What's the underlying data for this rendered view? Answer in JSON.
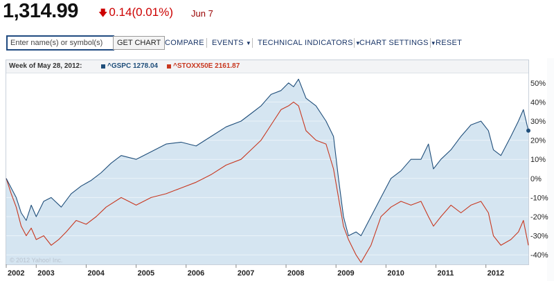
{
  "quote": {
    "price": "1,314.99",
    "change": "0.14",
    "change_pct": "(0.01%)",
    "change_direction": "down",
    "date": "Jun 7",
    "down_color": "#cc0000"
  },
  "toolbar": {
    "search_placeholder": "Enter name(s) or symbol(s)",
    "get_chart_label": "GET CHART",
    "compare_label": "COMPARE",
    "events_label": "EVENTS",
    "technical_indicators_label": "TECHNICAL INDICATORS",
    "chart_settings_label": "CHART SETTINGS",
    "reset_label": "RESET",
    "menu_icon": "caret-down-icon"
  },
  "legend": {
    "week_label": "Week of May 28, 2012:",
    "series": [
      {
        "symbol": "^GSPC",
        "value": "1278.04",
        "color": "#1f4e7a"
      },
      {
        "symbol": "^STOXX50E",
        "value": "2161.87",
        "color": "#c8371f"
      }
    ]
  },
  "copyright": "© 2012 Yahoo! Inc.",
  "chart_data": {
    "type": "line",
    "title": "",
    "xlabel": "",
    "ylabel": "",
    "ylim": [
      -45,
      55
    ],
    "y_ticks": [
      "50%",
      "40%",
      "30%",
      "20%",
      "10%",
      "0%",
      "-10%",
      "-20%",
      "-30%",
      "-40%"
    ],
    "y_tick_values": [
      50,
      40,
      30,
      20,
      10,
      0,
      -10,
      -20,
      -30,
      -40
    ],
    "x_ticks": [
      "2002",
      "2003",
      "2004",
      "2005",
      "2006",
      "2007",
      "2008",
      "2009",
      "2010",
      "2011",
      "2012"
    ],
    "x_tick_values": [
      2002.0,
      2002.6,
      2003.6,
      2004.6,
      2005.6,
      2006.6,
      2007.6,
      2008.6,
      2009.6,
      2010.6,
      2011.6
    ],
    "xlim": [
      2002.0,
      2012.45
    ],
    "grid": true,
    "area_fill_color": "#d5e5f1",
    "series": [
      {
        "name": "^GSPC",
        "color": "#1f4e7a",
        "x": [
          2002.0,
          2002.1,
          2002.2,
          2002.3,
          2002.4,
          2002.5,
          2002.6,
          2002.75,
          2002.9,
          2003.1,
          2003.3,
          2003.5,
          2003.7,
          2003.9,
          2004.1,
          2004.3,
          2004.6,
          2004.9,
          2005.2,
          2005.5,
          2005.8,
          2006.1,
          2006.4,
          2006.7,
          2006.9,
          2007.1,
          2007.3,
          2007.5,
          2007.65,
          2007.75,
          2007.85,
          2008.0,
          2008.2,
          2008.4,
          2008.55,
          2008.65,
          2008.75,
          2008.85,
          2009.0,
          2009.1,
          2009.3,
          2009.5,
          2009.7,
          2009.9,
          2010.1,
          2010.3,
          2010.45,
          2010.55,
          2010.7,
          2010.9,
          2011.1,
          2011.3,
          2011.5,
          2011.65,
          2011.75,
          2011.9,
          2012.1,
          2012.25,
          2012.35,
          2012.45
        ],
        "y": [
          0,
          -5,
          -10,
          -18,
          -22,
          -14,
          -20,
          -12,
          -10,
          -15,
          -8,
          -4,
          -1,
          3,
          8,
          12,
          10,
          14,
          18,
          19,
          17,
          22,
          27,
          30,
          34,
          38,
          44,
          46,
          50,
          48,
          52,
          42,
          38,
          30,
          22,
          0,
          -20,
          -30,
          -28,
          -30,
          -20,
          -10,
          0,
          4,
          10,
          10,
          18,
          5,
          10,
          15,
          22,
          28,
          30,
          25,
          15,
          12,
          22,
          30,
          36,
          25
        ]
      },
      {
        "name": "^STOXX50E",
        "color": "#c8371f",
        "x": [
          2002.0,
          2002.1,
          2002.2,
          2002.3,
          2002.4,
          2002.5,
          2002.6,
          2002.75,
          2002.9,
          2003.05,
          2003.2,
          2003.4,
          2003.6,
          2003.8,
          2004.0,
          2004.3,
          2004.6,
          2004.9,
          2005.2,
          2005.5,
          2005.8,
          2006.1,
          2006.4,
          2006.7,
          2006.9,
          2007.1,
          2007.3,
          2007.5,
          2007.65,
          2007.75,
          2007.85,
          2008.0,
          2008.2,
          2008.4,
          2008.55,
          2008.65,
          2008.75,
          2008.85,
          2009.0,
          2009.1,
          2009.3,
          2009.5,
          2009.7,
          2009.9,
          2010.1,
          2010.3,
          2010.45,
          2010.55,
          2010.7,
          2010.9,
          2011.1,
          2011.3,
          2011.5,
          2011.65,
          2011.75,
          2011.9,
          2012.1,
          2012.25,
          2012.35,
          2012.45
        ],
        "y": [
          0,
          -8,
          -15,
          -25,
          -30,
          -26,
          -32,
          -30,
          -35,
          -32,
          -28,
          -22,
          -24,
          -20,
          -15,
          -10,
          -14,
          -10,
          -8,
          -5,
          -2,
          2,
          7,
          10,
          15,
          20,
          28,
          36,
          38,
          40,
          38,
          25,
          20,
          18,
          5,
          -10,
          -25,
          -32,
          -40,
          -44,
          -35,
          -20,
          -15,
          -12,
          -14,
          -12,
          -20,
          -25,
          -20,
          -14,
          -18,
          -14,
          -12,
          -18,
          -30,
          -35,
          -32,
          -28,
          -22,
          -35
        ]
      }
    ]
  }
}
